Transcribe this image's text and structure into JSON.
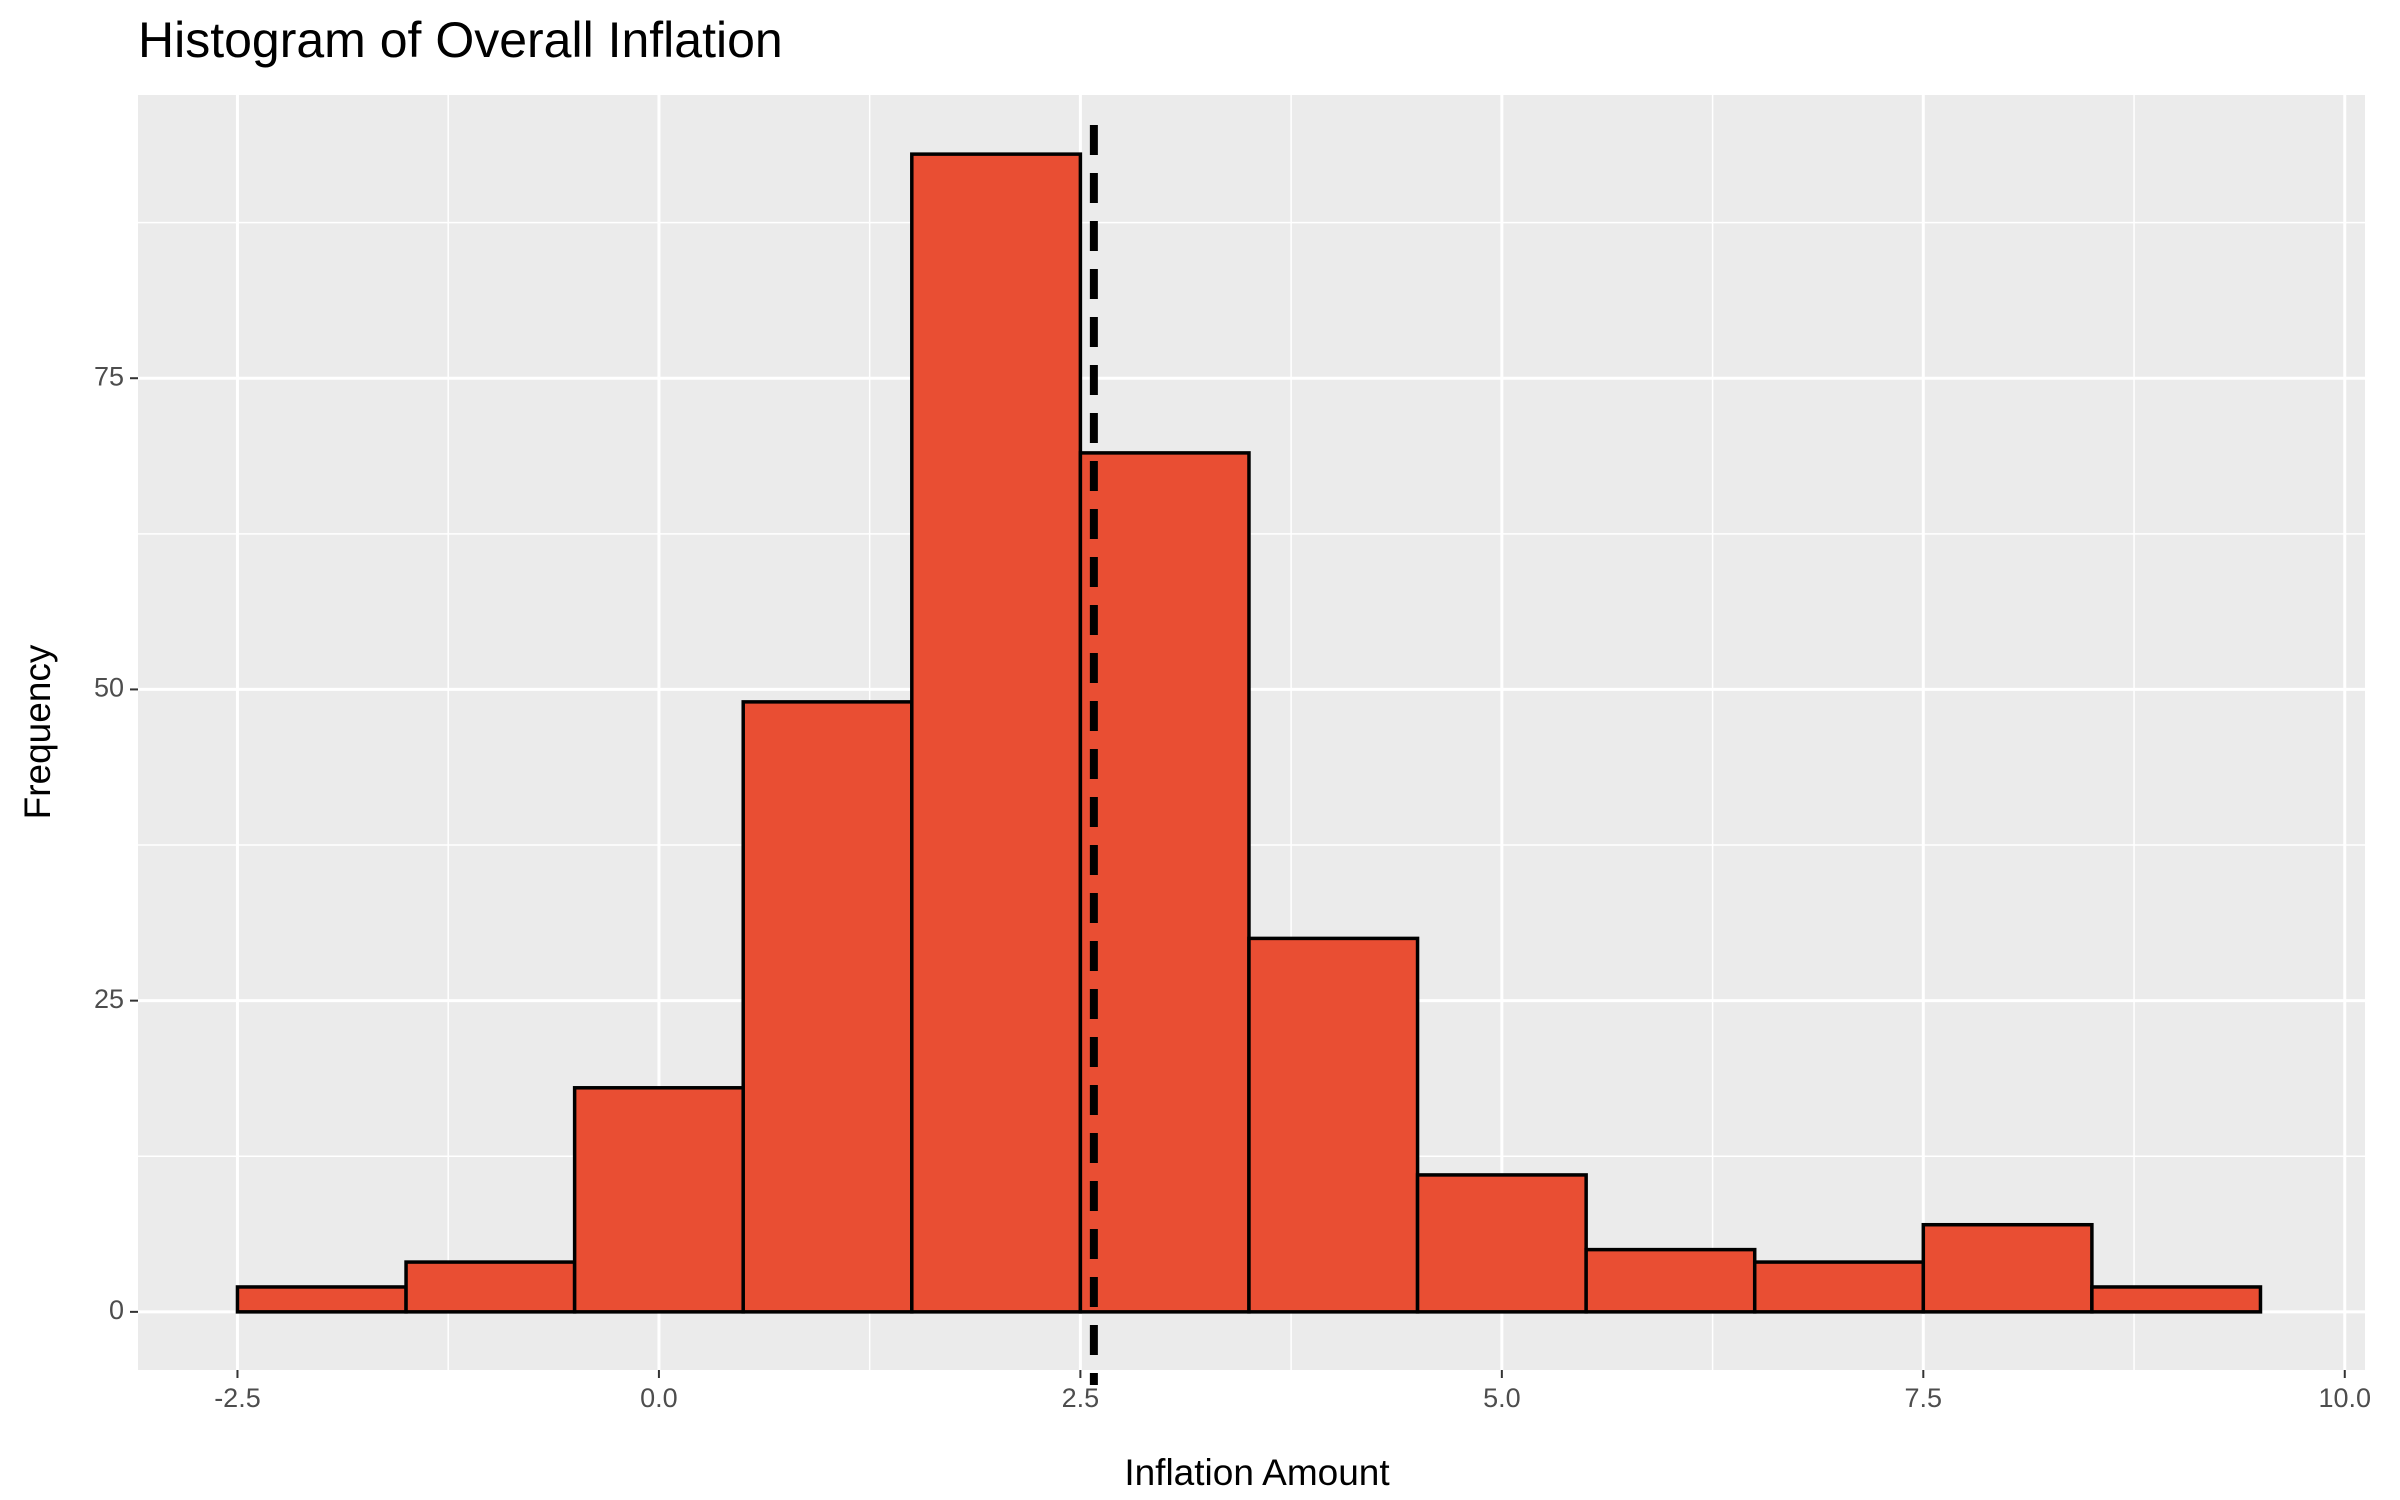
{
  "chart_data": {
    "type": "histogram",
    "title": "Histogram of Overall Inflation",
    "x_label": "Inflation Amount",
    "y_label": "Frequency",
    "bins": [
      -2.5,
      -1.5,
      -0.5,
      0.5,
      1.5,
      2.5,
      3.5,
      4.5,
      5.5,
      6.5,
      7.5,
      8.5,
      9.5
    ],
    "values": [
      2,
      4,
      18,
      49,
      93,
      69,
      30,
      11,
      5,
      4,
      7,
      2
    ],
    "color": "#e94e33",
    "edge_color": "#000000",
    "vline": 2.58,
    "vline_color": "#000000",
    "xlim": [
      -3.09,
      10.12
    ],
    "xticks": [
      -2.5,
      {
        "value": 0,
        "label": "0.0"
      },
      2.5,
      {
        "value": 5,
        "label": "5.0"
      },
      7.5,
      {
        "value": 10,
        "label": "10.0"
      }
    ],
    "ylim": [
      -4.67,
      97.75
    ],
    "yticks": [
      0,
      25,
      50,
      75
    ],
    "grid": true
  }
}
